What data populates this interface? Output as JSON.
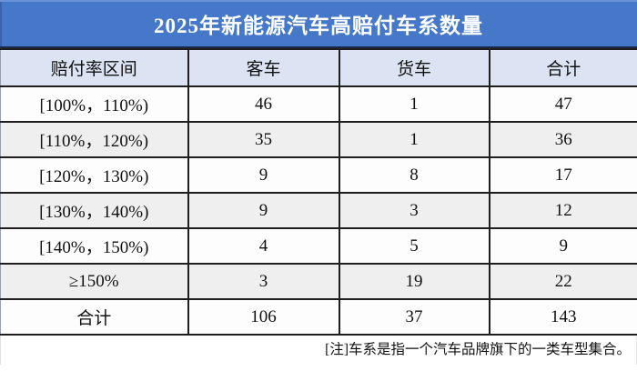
{
  "chart_data": {
    "type": "table",
    "title": "2025年新能源汽车高赔付车系数量",
    "columns": [
      "赔付率区间",
      "客车",
      "货车",
      "合计"
    ],
    "rows": [
      [
        "[100%，110%)",
        46,
        1,
        47
      ],
      [
        "[110%，120%)",
        35,
        1,
        36
      ],
      [
        "[120%，130%)",
        9,
        8,
        17
      ],
      [
        "[130%，140%)",
        9,
        3,
        12
      ],
      [
        "[140%，150%)",
        4,
        5,
        9
      ],
      [
        "≥150%",
        3,
        19,
        22
      ],
      [
        "合计",
        106,
        37,
        143
      ]
    ],
    "note": "[注]车系是指一个汽车品牌旗下的一类车型集合。",
    "layout_hints": {
      "striped": true,
      "header_position": "top"
    }
  },
  "colors": {
    "title_bg": "#4678c9",
    "title_text": "#ffffff",
    "header_row_bg": "#dce3f3",
    "stripe_row_bg": "#efefef",
    "plain_row_bg": "#fdfdfd",
    "grid_border": "#1f1f1f",
    "body_text": "#111111"
  }
}
